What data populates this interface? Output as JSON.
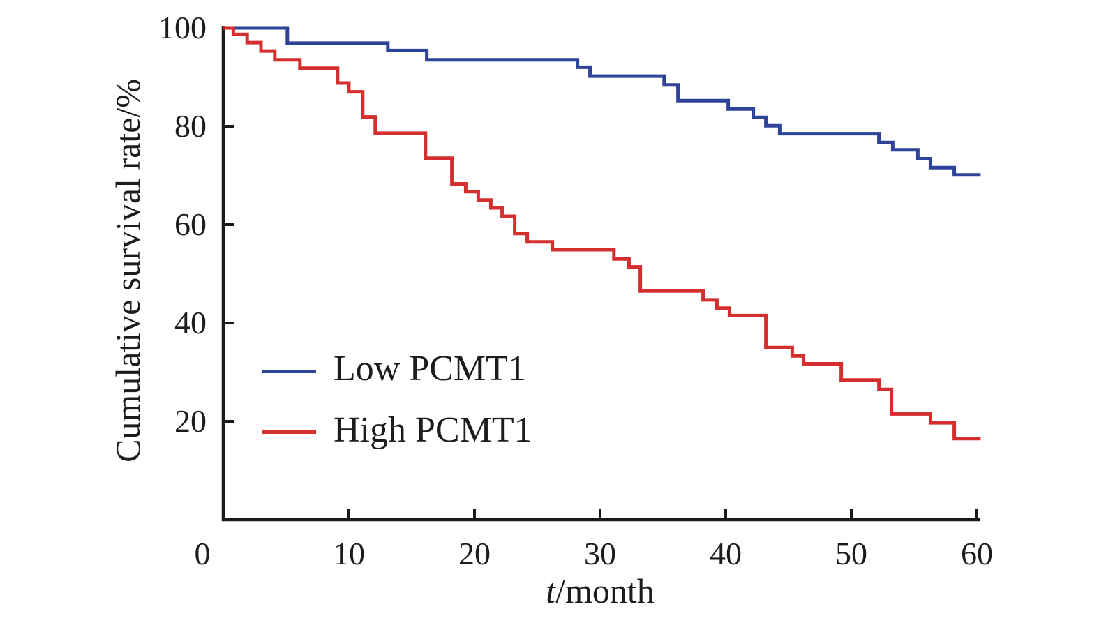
{
  "chart_data": {
    "type": "line",
    "subtype": "kaplan-meier-step-survival",
    "title": "",
    "xlabel": "t/month",
    "xlabel_italic": "t",
    "xlabel_rest": "/month",
    "ylabel": "Cumulative survival rate/%",
    "xlim": [
      0,
      60
    ],
    "ylim": [
      0,
      100
    ],
    "x_ticks": [
      0,
      10,
      20,
      30,
      40,
      50,
      60
    ],
    "y_ticks": [
      100,
      80,
      60,
      40,
      20
    ],
    "grid": false,
    "legend_position": "inside-left-middle",
    "x_end": 60.3,
    "series": [
      {
        "name": "Low PCMT1",
        "color": "#2e4498",
        "start": [
          0,
          100
        ],
        "steps": [
          [
            5.1,
            96.9
          ],
          [
            13.1,
            95.4
          ],
          [
            16.2,
            93.5
          ],
          [
            28.2,
            92.0
          ],
          [
            29.2,
            90.2
          ],
          [
            35.1,
            88.4
          ],
          [
            36.2,
            85.2
          ],
          [
            40.2,
            83.5
          ],
          [
            42.2,
            81.8
          ],
          [
            43.2,
            80.1
          ],
          [
            44.3,
            78.5
          ],
          [
            52.2,
            76.7
          ],
          [
            53.3,
            75.2
          ],
          [
            55.3,
            73.4
          ],
          [
            56.3,
            71.6
          ],
          [
            58.2,
            70.1
          ]
        ]
      },
      {
        "name": "High PCMT1",
        "color": "#d32f2f",
        "start": [
          0,
          100
        ],
        "steps": [
          [
            0.8,
            98.7
          ],
          [
            1.9,
            97.0
          ],
          [
            3.0,
            95.3
          ],
          [
            4.1,
            93.5
          ],
          [
            6.1,
            91.8
          ],
          [
            9.1,
            88.8
          ],
          [
            10.0,
            87.0
          ],
          [
            11.1,
            81.9
          ],
          [
            12.1,
            78.6
          ],
          [
            16.1,
            73.5
          ],
          [
            18.2,
            68.3
          ],
          [
            19.3,
            66.7
          ],
          [
            20.3,
            65.0
          ],
          [
            21.3,
            63.4
          ],
          [
            22.2,
            61.7
          ],
          [
            23.2,
            58.2
          ],
          [
            24.2,
            56.5
          ],
          [
            26.2,
            54.9
          ],
          [
            31.1,
            53.0
          ],
          [
            32.3,
            51.4
          ],
          [
            33.2,
            46.5
          ],
          [
            38.2,
            44.7
          ],
          [
            39.3,
            43.0
          ],
          [
            40.3,
            41.5
          ],
          [
            43.2,
            35.0
          ],
          [
            45.3,
            33.3
          ],
          [
            46.2,
            31.7
          ],
          [
            49.2,
            28.4
          ],
          [
            52.2,
            26.5
          ],
          [
            53.2,
            21.5
          ],
          [
            56.3,
            19.7
          ],
          [
            58.2,
            16.5
          ]
        ]
      }
    ],
    "axis_color": "#1a1a1a"
  }
}
